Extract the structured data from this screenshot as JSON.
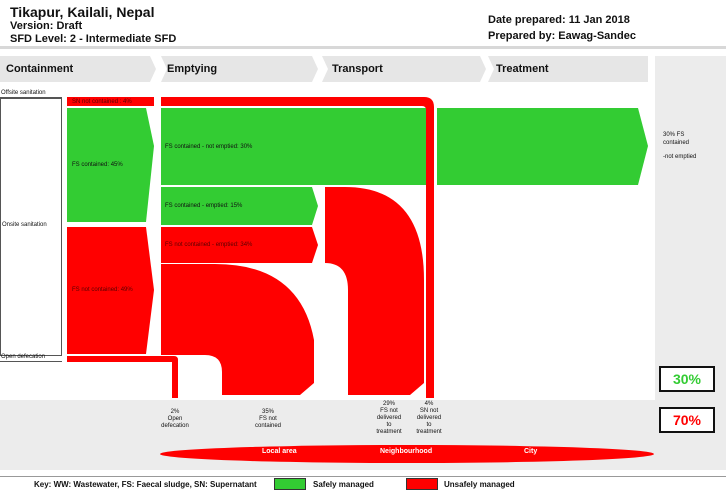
{
  "header": {
    "title": "Tikapur, Kailali, Nepal",
    "version": "Version: Draft",
    "level": "SFD Level: 2 - Intermediate SFD",
    "date_prepared": "Date prepared:  11 Jan 2018",
    "prepared_by": "Prepared by: Eawag-Sandec"
  },
  "stages": [
    "Containment",
    "Emptying",
    "Transport",
    "Treatment"
  ],
  "row_labels": {
    "offsite": "Offsite sanitation",
    "onsite": "Onsite sanitation",
    "open": "Open defecation"
  },
  "flows": {
    "sn_not_contained": "SN not contained : 4%",
    "fs_contained": "FS contained: 45%",
    "fs_not_contained": "FS not contained: 49%",
    "fs_contained_not_emptied": "FS contained - not emptied: 30%",
    "fs_contained_emptied": "FS contained - emptied: 15%",
    "fs_not_contained_emptied": "FS not contained - emptied: 34%"
  },
  "treatment_note": {
    "line1": "30% FS",
    "line2": "contained",
    "line3": "-not emptied"
  },
  "results": [
    {
      "pct": "2%",
      "l1": "Open",
      "l2": "defecation",
      "l3": "",
      "l4": ""
    },
    {
      "pct": "35%",
      "l1": "FS not",
      "l2": "contained",
      "l3": "",
      "l4": ""
    },
    {
      "pct": "29%",
      "l1": "FS not",
      "l2": "delivered",
      "l3": "to",
      "l4": "treatment"
    },
    {
      "pct": "4%",
      "l1": "SN not",
      "l2": "delivered",
      "l3": "to",
      "l4": "treatment"
    }
  ],
  "summary": {
    "safe": "30%",
    "unsafe": "70%",
    "safe_color": "#33cc33",
    "unsafe_color": "#ff0000"
  },
  "areas": [
    "Local area",
    "Neighbourhood",
    "City"
  ],
  "legend": {
    "key": "Key: WW: Wastewater, FS: Faecal sludge, SN: Supernatant",
    "safe_label": "Safely managed",
    "unsafe_label": "Unsafely managed"
  }
}
